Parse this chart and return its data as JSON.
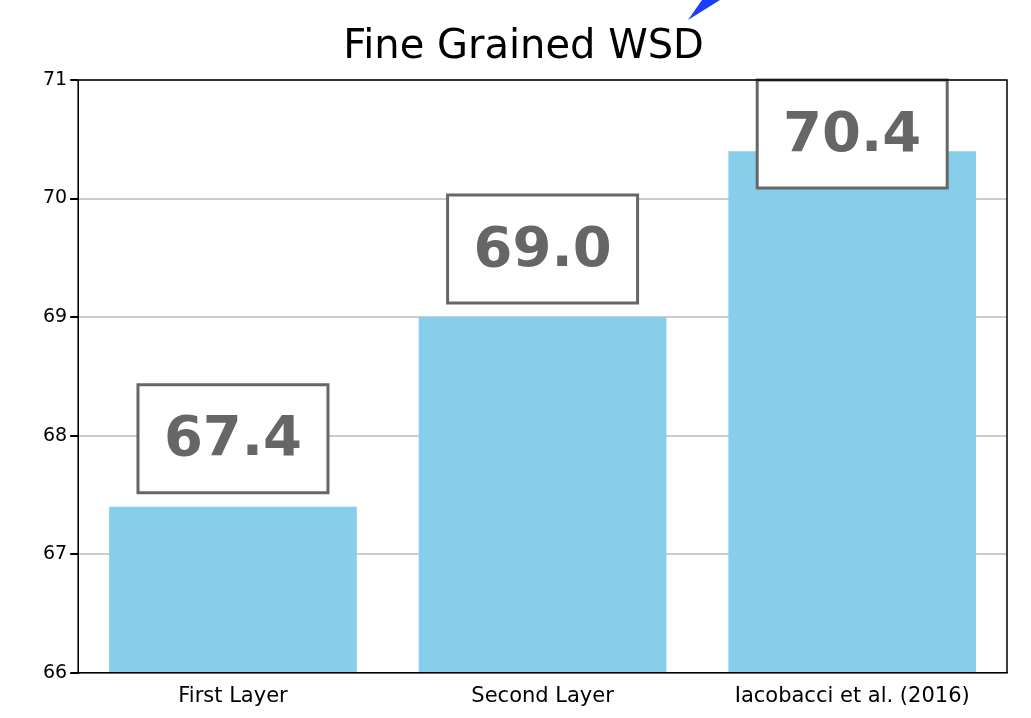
{
  "chart_data": {
    "type": "bar",
    "title": "Fine Grained WSD",
    "categories": [
      "First Layer",
      "Second Layer",
      "Iacobacci et al. (2016)"
    ],
    "values": [
      67.4,
      69.0,
      70.4
    ],
    "value_labels": [
      "67.4",
      "69.0",
      "70.4"
    ],
    "color": "#87ceeb",
    "ylim": [
      66,
      71
    ],
    "yticks": [
      66,
      67,
      68,
      69,
      70,
      71
    ],
    "grid": "y"
  }
}
